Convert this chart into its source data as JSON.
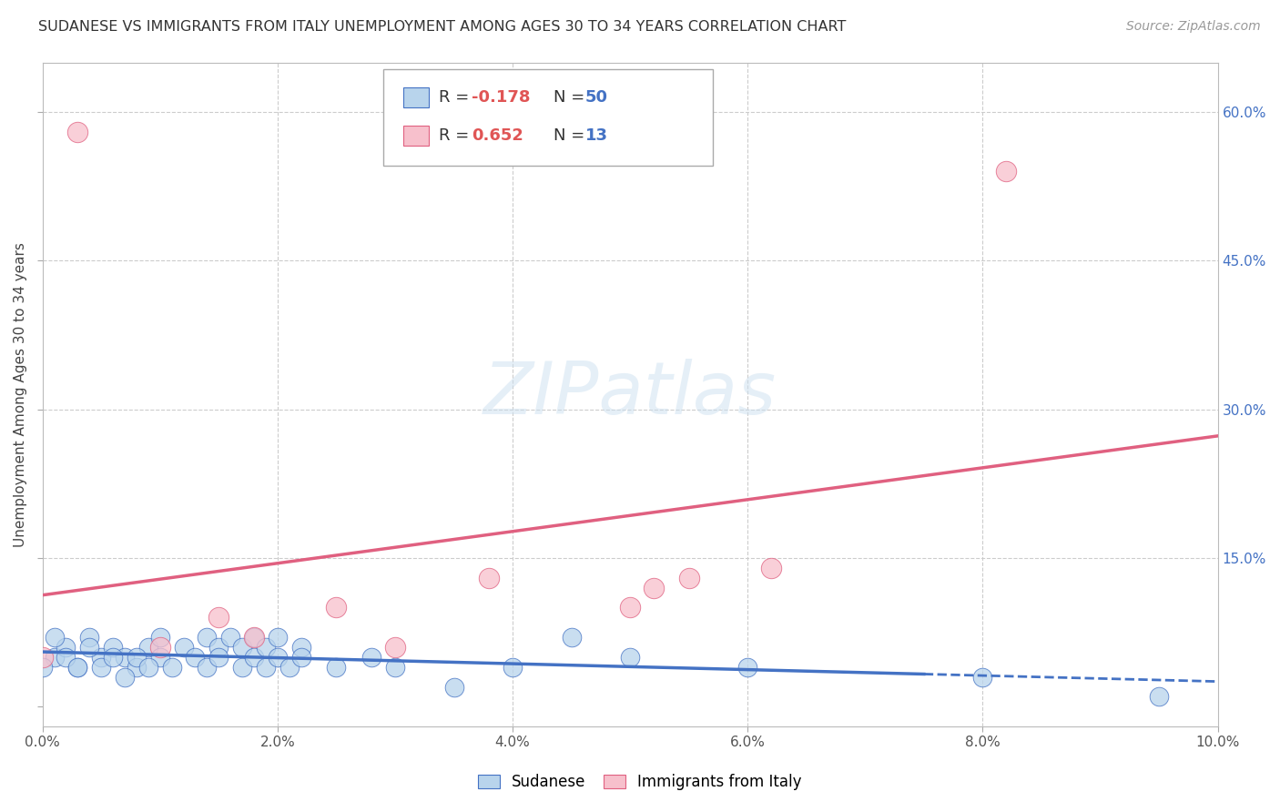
{
  "title": "SUDANESE VS IMMIGRANTS FROM ITALY UNEMPLOYMENT AMONG AGES 30 TO 34 YEARS CORRELATION CHART",
  "source": "Source: ZipAtlas.com",
  "ylabel": "Unemployment Among Ages 30 to 34 years",
  "xlim": [
    0,
    0.1
  ],
  "ylim": [
    -0.02,
    0.65
  ],
  "xticks": [
    0.0,
    0.02,
    0.04,
    0.06,
    0.08,
    0.1
  ],
  "yticks": [
    0.0,
    0.15,
    0.3,
    0.45,
    0.6
  ],
  "xtick_labels": [
    "0.0%",
    "2.0%",
    "4.0%",
    "6.0%",
    "8.0%",
    "10.0%"
  ],
  "ytick_labels_right": [
    "",
    "15.0%",
    "30.0%",
    "45.0%",
    "60.0%"
  ],
  "blue_fill": "#b8d4ec",
  "blue_edge": "#4472c4",
  "pink_fill": "#f7c0cc",
  "pink_edge": "#e06080",
  "blue_line": "#4472c4",
  "pink_line": "#e06080",
  "watermark_text": "ZIPatlas",
  "sudanese_x": [
    0.001,
    0.002,
    0.003,
    0.004,
    0.005,
    0.006,
    0.007,
    0.008,
    0.009,
    0.01,
    0.01,
    0.011,
    0.012,
    0.013,
    0.014,
    0.014,
    0.015,
    0.015,
    0.016,
    0.017,
    0.017,
    0.018,
    0.018,
    0.019,
    0.019,
    0.02,
    0.02,
    0.021,
    0.022,
    0.022,
    0.0,
    0.001,
    0.002,
    0.003,
    0.004,
    0.005,
    0.006,
    0.007,
    0.008,
    0.009,
    0.025,
    0.028,
    0.03,
    0.035,
    0.04,
    0.045,
    0.05,
    0.06,
    0.08,
    0.095
  ],
  "sudanese_y": [
    0.05,
    0.06,
    0.04,
    0.07,
    0.05,
    0.06,
    0.05,
    0.04,
    0.06,
    0.05,
    0.07,
    0.04,
    0.06,
    0.05,
    0.07,
    0.04,
    0.06,
    0.05,
    0.07,
    0.04,
    0.06,
    0.05,
    0.07,
    0.04,
    0.06,
    0.05,
    0.07,
    0.04,
    0.06,
    0.05,
    0.04,
    0.07,
    0.05,
    0.04,
    0.06,
    0.04,
    0.05,
    0.03,
    0.05,
    0.04,
    0.04,
    0.05,
    0.04,
    0.02,
    0.04,
    0.07,
    0.05,
    0.04,
    0.03,
    0.01
  ],
  "italy_x": [
    0.0,
    0.003,
    0.01,
    0.015,
    0.018,
    0.025,
    0.03,
    0.038,
    0.05,
    0.052,
    0.055,
    0.062,
    0.082
  ],
  "italy_y": [
    0.05,
    0.58,
    0.06,
    0.09,
    0.07,
    0.1,
    0.06,
    0.13,
    0.1,
    0.12,
    0.13,
    0.14,
    0.54
  ],
  "legend_r1_text": "R = ",
  "legend_r1_val": "-0.178",
  "legend_n1_text": "N = ",
  "legend_n1_val": "50",
  "legend_r2_text": "R = ",
  "legend_r2_val": "0.652",
  "legend_n2_text": "N = ",
  "legend_n2_val": "13",
  "r_color": "#e05555",
  "n_color": "#4472c4"
}
